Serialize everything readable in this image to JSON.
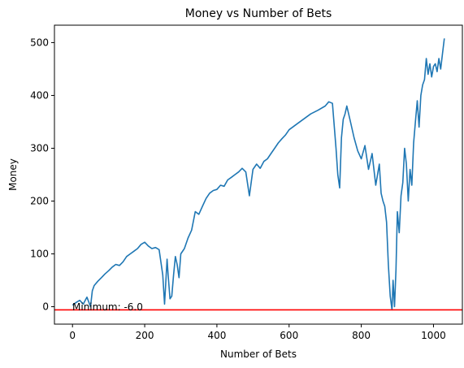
{
  "chart_data": {
    "type": "line",
    "title": "Money vs Number of Bets",
    "xlabel": "Number of Bets",
    "ylabel": "Money",
    "xlim": [
      -50,
      1080
    ],
    "ylim": [
      -33,
      533
    ],
    "xticks": [
      0,
      200,
      400,
      600,
      800,
      1000
    ],
    "yticks": [
      0,
      100,
      200,
      300,
      400,
      500
    ],
    "grid": false,
    "series": [
      {
        "color": "#1f77b4",
        "x": [
          0,
          10,
          20,
          30,
          40,
          50,
          55,
          60,
          70,
          80,
          90,
          100,
          110,
          120,
          130,
          140,
          150,
          160,
          170,
          180,
          190,
          200,
          210,
          220,
          230,
          240,
          250,
          255,
          258,
          262,
          265,
          270,
          275,
          280,
          285,
          290,
          295,
          300,
          310,
          320,
          330,
          340,
          350,
          360,
          370,
          380,
          390,
          400,
          410,
          420,
          430,
          440,
          450,
          460,
          470,
          480,
          490,
          500,
          510,
          520,
          530,
          540,
          550,
          560,
          570,
          580,
          590,
          600,
          620,
          640,
          660,
          680,
          700,
          710,
          720,
          730,
          735,
          740,
          745,
          750,
          755,
          760,
          770,
          780,
          790,
          800,
          810,
          820,
          830,
          840,
          850,
          855,
          860,
          865,
          870,
          875,
          880,
          885,
          888,
          892,
          896,
          900,
          905,
          910,
          915,
          920,
          925,
          930,
          935,
          940,
          945,
          950,
          955,
          960,
          965,
          970,
          975,
          980,
          985,
          990,
          995,
          1000,
          1005,
          1010,
          1015,
          1020,
          1025,
          1030
        ],
        "y": [
          3,
          8,
          12,
          5,
          18,
          0,
          30,
          40,
          48,
          55,
          62,
          68,
          75,
          80,
          78,
          85,
          95,
          100,
          105,
          110,
          118,
          122,
          115,
          110,
          112,
          108,
          60,
          5,
          40,
          90,
          60,
          15,
          20,
          60,
          95,
          80,
          55,
          100,
          110,
          130,
          145,
          180,
          175,
          190,
          205,
          215,
          220,
          222,
          230,
          228,
          240,
          245,
          250,
          255,
          262,
          255,
          210,
          260,
          270,
          262,
          275,
          280,
          290,
          300,
          310,
          318,
          325,
          335,
          345,
          355,
          365,
          372,
          380,
          388,
          385,
          300,
          250,
          225,
          320,
          355,
          365,
          380,
          350,
          320,
          295,
          280,
          305,
          260,
          290,
          230,
          270,
          215,
          200,
          190,
          160,
          80,
          20,
          -6,
          50,
          0,
          70,
          180,
          140,
          210,
          235,
          300,
          270,
          200,
          260,
          230,
          310,
          350,
          390,
          340,
          400,
          420,
          430,
          470,
          440,
          460,
          435,
          455,
          460,
          445,
          470,
          450,
          480,
          508
        ]
      }
    ],
    "annotations": [
      {
        "type": "hline",
        "y": -6,
        "color": "#ff0000"
      }
    ],
    "min_label": "Minimum: -6.0"
  }
}
